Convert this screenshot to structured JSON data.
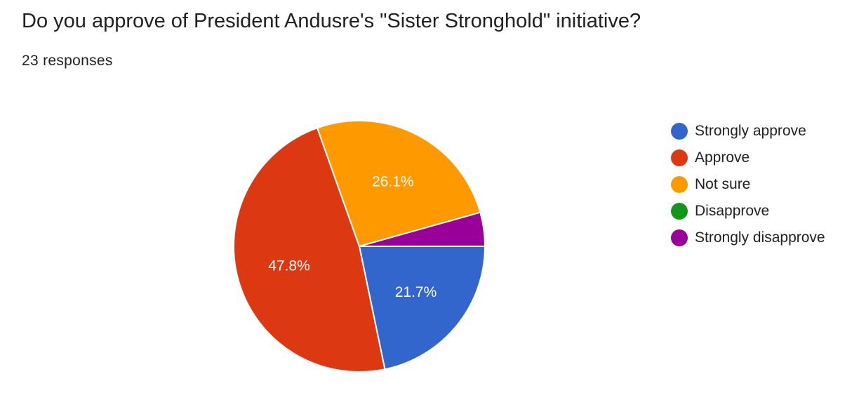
{
  "title": "Do you approve of President Andusre's \"Sister Stronghold\" initiative?",
  "responses_label": "23 responses",
  "chart_data": {
    "type": "pie",
    "title": "Do you approve of President Andusre's \"Sister Stronghold\" initiative?",
    "total_responses": 23,
    "categories": [
      "Strongly approve",
      "Approve",
      "Not sure",
      "Disapprove",
      "Strongly disapprove"
    ],
    "values": [
      5,
      11,
      6,
      0,
      1
    ],
    "percent_labels": [
      "21.7%",
      "47.8%",
      "26.1%",
      "",
      ""
    ],
    "colors": [
      "#3366cc",
      "#dc3912",
      "#ff9900",
      "#109618",
      "#990099"
    ],
    "legend_position": "right"
  }
}
